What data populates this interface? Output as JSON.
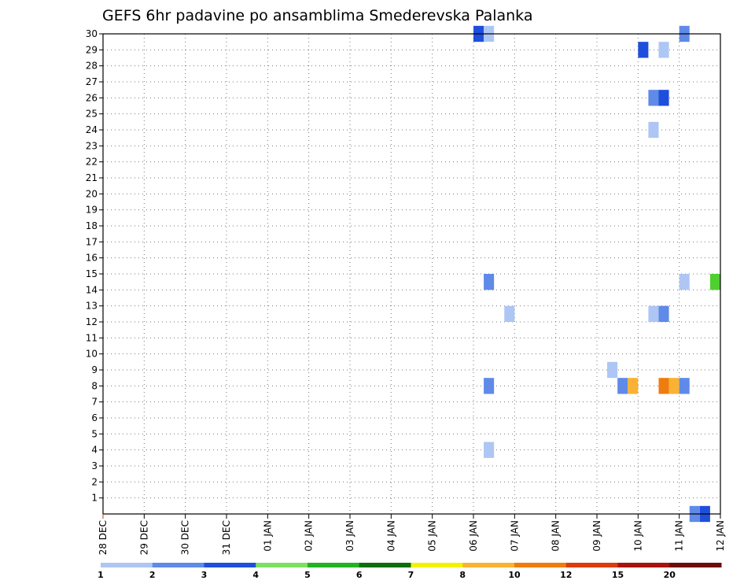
{
  "chart_data": {
    "type": "heatmap",
    "title": "GEFS 6hr padavine po ansamblima Smederevska Palanka",
    "x_ticks": [
      "28 DEC",
      "29 DEC",
      "30 DEC",
      "31 DEC",
      "01 JAN",
      "02 JAN",
      "03 JAN",
      "04 JAN",
      "05 JAN",
      "06 JAN",
      "07 JAN",
      "08 JAN",
      "09 JAN",
      "10 JAN",
      "11 JAN",
      "12 JAN"
    ],
    "y_ticks": [
      "1",
      "2",
      "3",
      "4",
      "5",
      "6",
      "7",
      "8",
      "9",
      "10",
      "11",
      "12",
      "13",
      "14",
      "15",
      "16",
      "17",
      "18",
      "19",
      "20",
      "21",
      "22",
      "23",
      "24",
      "25",
      "26",
      "27",
      "28",
      "29",
      "30"
    ],
    "x_range_days": [
      0,
      15
    ],
    "y_range": [
      0,
      30
    ],
    "grid": true,
    "colorbar": {
      "colors": [
        "#aec6f4",
        "#5f8ae8",
        "#1e4fdc",
        "#7ee060",
        "#21b321",
        "#0a6e0a",
        "#f2f200",
        "#f9b233",
        "#f07c0d",
        "#db3b0d",
        "#a8130a",
        "#6e0c0c"
      ],
      "labels": [
        "1",
        "2",
        "3",
        "4",
        "5",
        "6",
        "7",
        "8",
        "10",
        "12",
        "15",
        "20"
      ]
    },
    "cells": [
      {
        "day": 9.0,
        "member": 30,
        "color": "#1e4fdc"
      },
      {
        "day": 9.25,
        "member": 30,
        "color": "#aec6f4"
      },
      {
        "day": 14.0,
        "member": 30,
        "color": "#5f8ae8"
      },
      {
        "day": 13.0,
        "member": 29,
        "color": "#1e4fdc"
      },
      {
        "day": 13.5,
        "member": 29,
        "color": "#aec6f4"
      },
      {
        "day": 13.25,
        "member": 26,
        "color": "#5f8ae8"
      },
      {
        "day": 13.5,
        "member": 26,
        "color": "#1e4fdc"
      },
      {
        "day": 13.25,
        "member": 24,
        "color": "#aec6f4"
      },
      {
        "day": 9.25,
        "member": 14.5,
        "color": "#5f8ae8"
      },
      {
        "day": 14.0,
        "member": 14.5,
        "color": "#aec6f4"
      },
      {
        "day": 14.75,
        "member": 14.5,
        "color": "#4fcf30"
      },
      {
        "day": 9.75,
        "member": 12.5,
        "color": "#aec6f4"
      },
      {
        "day": 13.25,
        "member": 12.5,
        "color": "#aec6f4"
      },
      {
        "day": 13.5,
        "member": 12.5,
        "color": "#5f8ae8"
      },
      {
        "day": 12.25,
        "member": 9,
        "color": "#aec6f4"
      },
      {
        "day": 9.25,
        "member": 8,
        "color": "#5f8ae8"
      },
      {
        "day": 12.5,
        "member": 8,
        "color": "#5f8ae8"
      },
      {
        "day": 12.75,
        "member": 8,
        "color": "#f9b233"
      },
      {
        "day": 13.5,
        "member": 8,
        "color": "#f07c0d"
      },
      {
        "day": 13.75,
        "member": 8,
        "color": "#f9b233"
      },
      {
        "day": 14.0,
        "member": 8,
        "color": "#5f8ae8"
      },
      {
        "day": 9.25,
        "member": 4,
        "color": "#aec6f4"
      },
      {
        "day": 14.25,
        "member": 0,
        "color": "#5f8ae8"
      },
      {
        "day": 14.5,
        "member": 0,
        "color": "#1e4fdc"
      }
    ]
  }
}
